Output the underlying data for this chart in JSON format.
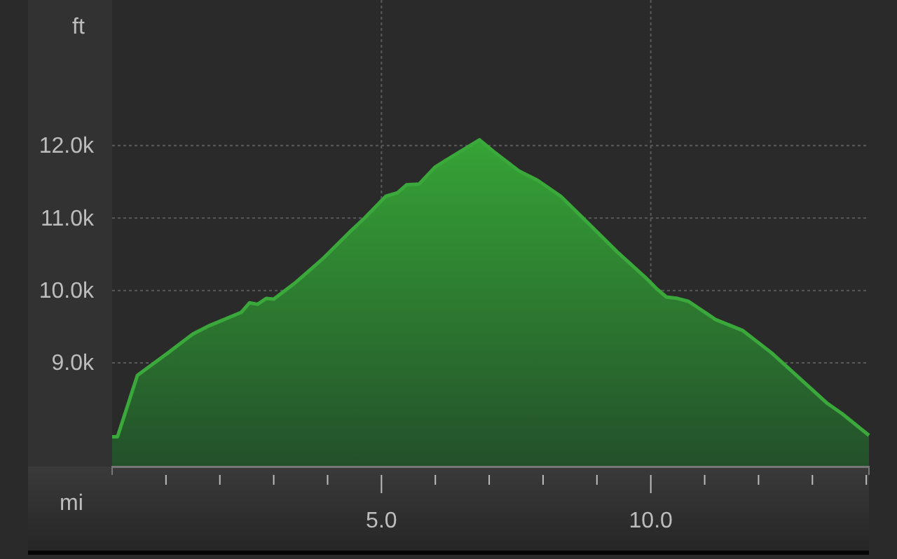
{
  "chart_data": {
    "type": "area",
    "xlabel": "mi",
    "ylabel": "ft",
    "x": [
      0,
      0.1,
      0.47,
      1.04,
      1.5,
      1.82,
      2.08,
      2.4,
      2.55,
      2.7,
      2.86,
      3.0,
      3.39,
      3.9,
      4.43,
      4.7,
      5.08,
      5.3,
      5.47,
      5.7,
      5.99,
      6.2,
      6.51,
      6.82,
      7.08,
      7.55,
      7.9,
      8.33,
      8.85,
      9.38,
      9.9,
      10.1,
      10.29,
      10.5,
      10.7,
      11.2,
      11.7,
      12.24,
      12.7,
      13.28,
      13.55,
      14.05
    ],
    "series": [
      {
        "color": "#3aa83a",
        "values": [
          7980,
          7980,
          8830,
          9140,
          9400,
          9520,
          9600,
          9700,
          9830,
          9810,
          9890,
          9880,
          10100,
          10430,
          10820,
          11010,
          11300,
          11350,
          11460,
          11470,
          11700,
          11800,
          11940,
          12080,
          11920,
          11650,
          11520,
          11300,
          10920,
          10530,
          10180,
          10030,
          9910,
          9890,
          9850,
          9600,
          9450,
          9140,
          8830,
          8440,
          8300,
          8000
        ]
      }
    ],
    "xlim": [
      0,
      14.05
    ],
    "ylim": [
      7570,
      14010
    ],
    "xticks": [
      {
        "value": 1,
        "label": null
      },
      {
        "value": 2,
        "label": null
      },
      {
        "value": 3,
        "label": null
      },
      {
        "value": 4,
        "label": null
      },
      {
        "value": 5,
        "label": "5.0"
      },
      {
        "value": 6,
        "label": null
      },
      {
        "value": 7,
        "label": null
      },
      {
        "value": 8,
        "label": null
      },
      {
        "value": 9,
        "label": null
      },
      {
        "value": 10,
        "label": "10.0"
      },
      {
        "value": 11,
        "label": null
      },
      {
        "value": 12,
        "label": null
      },
      {
        "value": 13,
        "label": null
      },
      {
        "value": 14,
        "label": null
      }
    ],
    "yticks": [
      {
        "value": 9000,
        "label": "9.0k"
      },
      {
        "value": 10000,
        "label": "10.0k"
      },
      {
        "value": 11000,
        "label": "11.0k"
      },
      {
        "value": 12000,
        "label": "12.0k"
      }
    ],
    "grid": true
  }
}
